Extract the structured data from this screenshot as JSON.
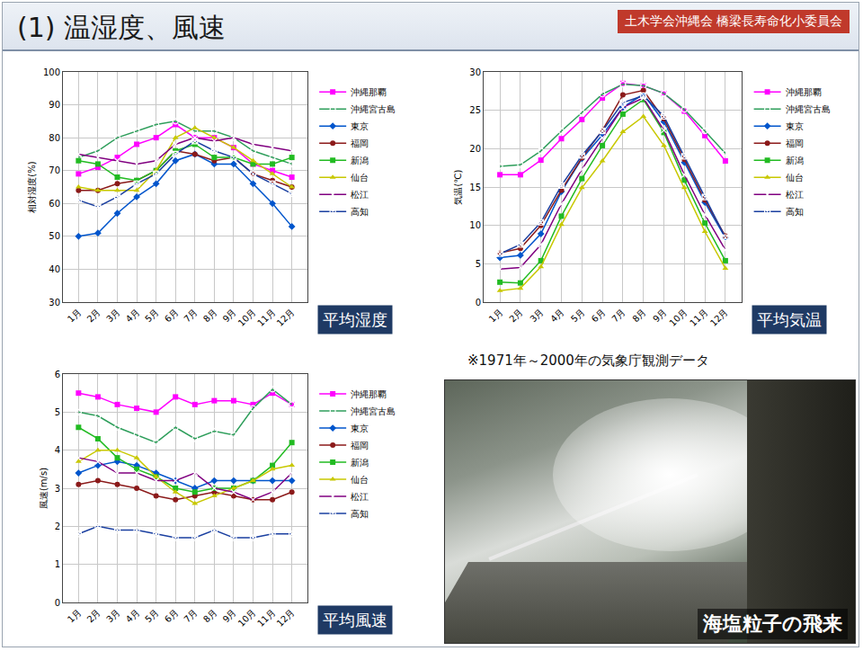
{
  "title": "(1) 温湿度、風速",
  "badge": "土木学会沖縄会 橋梁長寿命化小委員会",
  "note": "※1971年～2000年の気象庁観測データ",
  "photo": {
    "caption": "海塩粒子の飛来"
  },
  "chart_data": [
    {
      "type": "line",
      "title": "平均湿度",
      "y_label": "相対湿度(%)",
      "categories": [
        "1月",
        "2月",
        "3月",
        "4月",
        "5月",
        "6月",
        "7月",
        "8月",
        "9月",
        "10月",
        "11月",
        "12月"
      ],
      "ylim": [
        30,
        100
      ],
      "yticks": [
        30,
        40,
        50,
        60,
        70,
        80,
        90,
        100
      ],
      "grid": true,
      "legend": "right",
      "series": [
        {
          "name": "沖縄那覇",
          "color": "#ff00ff",
          "marker": "square",
          "values": [
            69,
            71,
            74,
            78,
            80,
            84,
            80,
            80,
            77,
            72,
            70,
            68
          ]
        },
        {
          "name": "沖縄宮古島",
          "color": "#2e9e5b",
          "marker": "circle-open",
          "values": [
            74,
            76,
            80,
            82,
            84,
            85,
            82,
            82,
            80,
            76,
            74,
            72
          ]
        },
        {
          "name": "東京",
          "color": "#0055cc",
          "marker": "diamond",
          "values": [
            50,
            51,
            57,
            62,
            66,
            73,
            75,
            72,
            72,
            66,
            60,
            53
          ]
        },
        {
          "name": "福岡",
          "color": "#8b1a1a",
          "marker": "circle",
          "values": [
            64,
            64,
            66,
            67,
            70,
            76,
            75,
            73,
            74,
            69,
            67,
            65
          ]
        },
        {
          "name": "新潟",
          "color": "#22bb22",
          "marker": "square",
          "values": [
            73,
            72,
            68,
            67,
            70,
            76,
            78,
            74,
            74,
            72,
            72,
            74
          ]
        },
        {
          "name": "仙台",
          "color": "#c8c800",
          "marker": "triangle-up",
          "values": [
            65,
            64,
            64,
            64,
            70,
            80,
            83,
            80,
            77,
            73,
            69,
            65
          ]
        },
        {
          "name": "松江",
          "color": "#800080",
          "marker": "x-thin-open",
          "values": [
            75,
            74,
            73,
            72,
            73,
            78,
            80,
            79,
            80,
            78,
            77,
            76
          ]
        },
        {
          "name": "高知",
          "color": "#1a3fa0",
          "marker": "square-x-open",
          "values": [
            61,
            59,
            62,
            66,
            69,
            75,
            79,
            76,
            74,
            69,
            66,
            63
          ]
        }
      ]
    },
    {
      "type": "line",
      "title": "平均気温",
      "y_label": "気温(℃)",
      "categories": [
        "1月",
        "2月",
        "3月",
        "4月",
        "5月",
        "6月",
        "7月",
        "8月",
        "9月",
        "10月",
        "11月",
        "12月"
      ],
      "ylim": [
        0,
        30
      ],
      "yticks": [
        0,
        5,
        10,
        15,
        20,
        25,
        30
      ],
      "grid": true,
      "legend": "right",
      "series": [
        {
          "name": "沖縄那覇",
          "color": "#ff00ff",
          "marker": "square",
          "values": [
            16.6,
            16.6,
            18.5,
            21.3,
            23.8,
            26.6,
            28.5,
            28.2,
            27.2,
            24.9,
            21.7,
            18.4
          ]
        },
        {
          "name": "沖縄宮古島",
          "color": "#2e9e5b",
          "marker": "circle-open",
          "values": [
            17.7,
            17.9,
            19.7,
            22.3,
            24.7,
            27.1,
            28.4,
            28.2,
            27.2,
            25.1,
            22.3,
            19.4
          ]
        },
        {
          "name": "東京",
          "color": "#0055cc",
          "marker": "diamond",
          "values": [
            5.8,
            6.1,
            8.9,
            14.4,
            18.7,
            21.8,
            25.4,
            27.1,
            23.5,
            18.2,
            13.0,
            8.4
          ]
        },
        {
          "name": "福岡",
          "color": "#8b1a1a",
          "marker": "circle",
          "values": [
            6.4,
            7.0,
            10.0,
            14.6,
            18.8,
            22.4,
            27.0,
            27.6,
            23.9,
            18.6,
            13.3,
            8.6
          ]
        },
        {
          "name": "新潟",
          "color": "#22bb22",
          "marker": "square",
          "values": [
            2.6,
            2.5,
            5.4,
            11.2,
            16.1,
            20.4,
            24.5,
            26.4,
            22.1,
            15.9,
            10.3,
            5.4
          ]
        },
        {
          "name": "仙台",
          "color": "#c8c800",
          "marker": "triangle-up",
          "values": [
            1.5,
            1.8,
            4.6,
            10.1,
            14.9,
            18.4,
            22.2,
            24.2,
            20.4,
            14.9,
            9.2,
            4.4
          ]
        },
        {
          "name": "松江",
          "color": "#800080",
          "marker": "x-thin-open",
          "values": [
            4.3,
            4.5,
            7.5,
            12.8,
            17.3,
            21.4,
            25.4,
            26.6,
            22.4,
            16.6,
            11.4,
            6.8
          ]
        },
        {
          "name": "高知",
          "color": "#1a3fa0",
          "marker": "square-x-open",
          "values": [
            6.3,
            7.5,
            10.4,
            15.2,
            19.1,
            22.3,
            26.0,
            26.9,
            24.2,
            19.0,
            13.7,
            8.4
          ]
        }
      ]
    },
    {
      "type": "line",
      "title": "平均風速",
      "y_label": "風速(m/s)",
      "categories": [
        "1月",
        "2月",
        "3月",
        "4月",
        "5月",
        "6月",
        "7月",
        "8月",
        "9月",
        "10月",
        "11月",
        "12月"
      ],
      "ylim": [
        0,
        6
      ],
      "yticks": [
        0,
        1,
        2,
        3,
        4,
        5,
        6
      ],
      "grid": true,
      "legend": "right",
      "series": [
        {
          "name": "沖縄那覇",
          "color": "#ff00ff",
          "marker": "square",
          "values": [
            5.5,
            5.4,
            5.2,
            5.1,
            5.0,
            5.4,
            5.2,
            5.3,
            5.3,
            5.2,
            5.5,
            5.2
          ]
        },
        {
          "name": "沖縄宮古島",
          "color": "#2e9e5b",
          "marker": "circle-open",
          "values": [
            5.0,
            4.9,
            4.6,
            4.4,
            4.2,
            4.6,
            4.3,
            4.5,
            4.4,
            5.1,
            5.6,
            5.2
          ]
        },
        {
          "name": "東京",
          "color": "#0055cc",
          "marker": "diamond",
          "values": [
            3.4,
            3.6,
            3.7,
            3.6,
            3.4,
            3.2,
            3.0,
            3.2,
            3.2,
            3.2,
            3.2,
            3.2
          ]
        },
        {
          "name": "福岡",
          "color": "#8b1a1a",
          "marker": "circle",
          "values": [
            3.1,
            3.2,
            3.1,
            3.0,
            2.8,
            2.7,
            2.8,
            2.9,
            2.8,
            2.7,
            2.7,
            2.9
          ]
        },
        {
          "name": "新潟",
          "color": "#22bb22",
          "marker": "square",
          "values": [
            4.6,
            4.3,
            3.8,
            3.5,
            3.3,
            3.0,
            2.9,
            3.0,
            3.0,
            3.2,
            3.6,
            4.2
          ]
        },
        {
          "name": "仙台",
          "color": "#c8c800",
          "marker": "triangle-up",
          "values": [
            3.7,
            4.0,
            4.0,
            3.8,
            3.3,
            2.9,
            2.6,
            2.8,
            3.0,
            3.2,
            3.5,
            3.6
          ]
        },
        {
          "name": "松江",
          "color": "#800080",
          "marker": "x-thin-open",
          "values": [
            3.8,
            3.7,
            3.4,
            3.4,
            3.2,
            3.2,
            3.4,
            3.0,
            2.9,
            2.7,
            2.9,
            3.4
          ]
        },
        {
          "name": "高知",
          "color": "#1a3fa0",
          "marker": "square-x-open",
          "values": [
            1.8,
            2.0,
            1.9,
            1.9,
            1.8,
            1.7,
            1.7,
            1.9,
            1.7,
            1.7,
            1.8,
            1.8
          ]
        }
      ]
    }
  ]
}
